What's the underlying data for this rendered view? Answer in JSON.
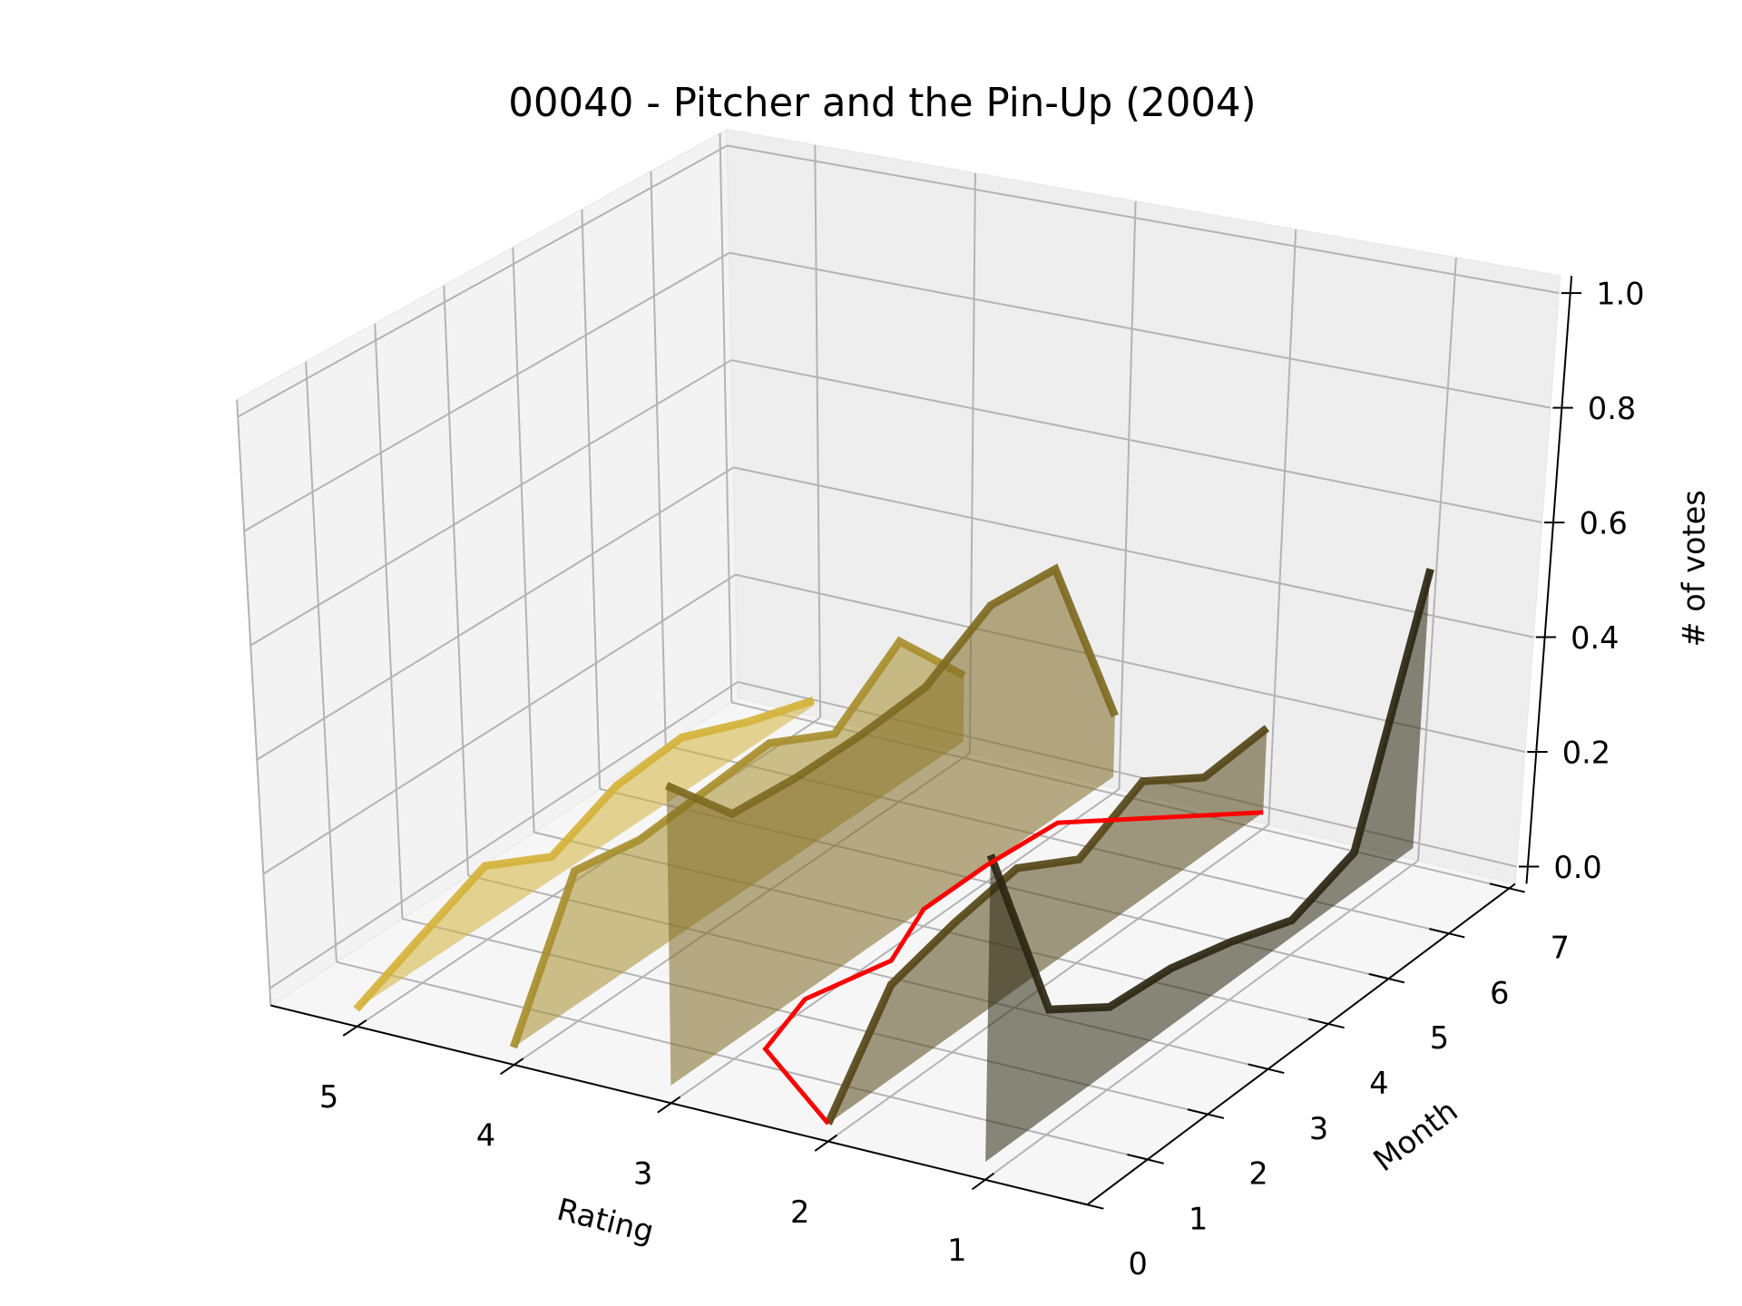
{
  "chart_data": {
    "type": "line3d",
    "title": "00040 - Pitcher and the Pin-Up (2004)",
    "x_label": "Rating",
    "y_label": "Month",
    "z_label": "# of votes",
    "months": [
      0,
      1,
      2,
      3,
      4,
      5,
      6,
      7
    ],
    "series": [
      {
        "rating": 5,
        "color": "#d4b23a",
        "values": [
          0,
          0.05,
          0.1,
          0.04,
          0.09,
          0.1,
          0.05,
          0.01
        ]
      },
      {
        "rating": 4,
        "color": "#a88e2e",
        "values": [
          0,
          0.23,
          0.21,
          0.22,
          0.23,
          0.17,
          0.26,
          0.12
        ]
      },
      {
        "rating": 3,
        "color": "#7e6a22",
        "values": [
          0.51,
          0.39,
          0.38,
          0.38,
          0.39,
          0.46,
          0.45,
          0.11
        ]
      },
      {
        "rating": 2,
        "color": "#564718",
        "values": [
          0,
          0.16,
          0.19,
          0.21,
          0.15,
          0.21,
          0.14,
          0.15
        ]
      },
      {
        "rating": 1,
        "color": "#2b2611",
        "values": [
          0.51,
          0.18,
          0.11,
          0.1,
          0.07,
          0.03,
          0.07,
          0.49
        ]
      }
    ],
    "mean_line": {
      "color": "#ff0000",
      "values": [
        2.0,
        2.8,
        2.95,
        2.8,
        3.0,
        3.0,
        2.95,
        2.0
      ]
    },
    "xlim": [
      0.35,
      5.55
    ],
    "ylim": [
      0,
      7.1
    ],
    "zlim": [
      -0.03,
      1.03
    ],
    "xticks": [
      1,
      2,
      3,
      4,
      5
    ],
    "yticks": [
      0,
      1,
      2,
      3,
      4,
      5,
      6,
      7
    ],
    "zticks": [
      {
        "value": 0,
        "label": "0.0"
      },
      0.2,
      0.4,
      0.6,
      0.8,
      {
        "value": 1,
        "label": "1.0"
      }
    ],
    "grid": true
  }
}
